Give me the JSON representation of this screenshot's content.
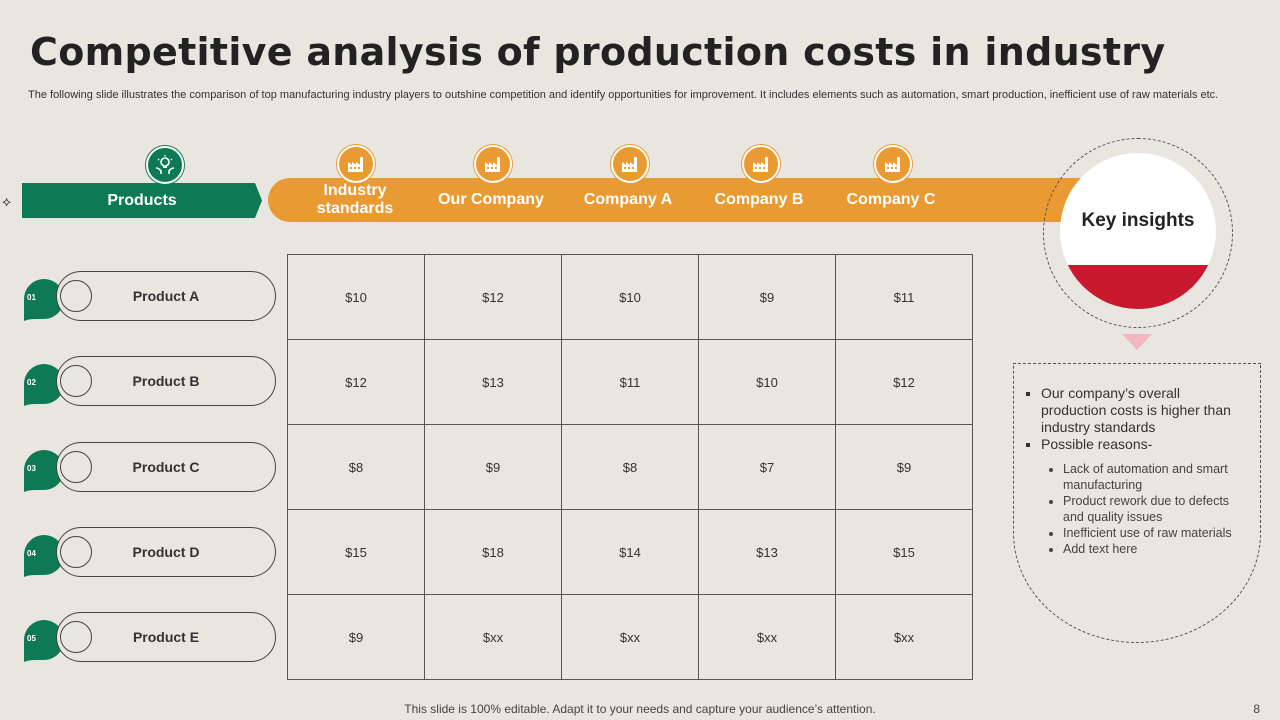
{
  "title": "Competitive analysis of production costs in industry",
  "subtitle": "The following slide illustrates the comparison of top manufacturing industry players to outshine competition and identify opportunities for improvement. It includes elements such as automation, smart production, inefficient use of raw materials etc.",
  "header": {
    "products_label": "Products",
    "columns": [
      "Industry standards",
      "Our Company",
      "Company A",
      "Company B",
      "Company C"
    ]
  },
  "rows": [
    {
      "num": "01",
      "label": "Product A",
      "values": [
        "$10",
        "$12",
        "$10",
        "$9",
        "$11"
      ]
    },
    {
      "num": "02",
      "label": "Product B",
      "values": [
        "$12",
        "$13",
        "$11",
        "$10",
        "$12"
      ]
    },
    {
      "num": "03",
      "label": "Product C",
      "values": [
        "$8",
        "$9",
        "$8",
        "$7",
        "$9"
      ]
    },
    {
      "num": "04",
      "label": "Product D",
      "values": [
        "$15",
        "$18",
        "$14",
        "$13",
        "$15"
      ]
    },
    {
      "num": "05",
      "label": "Product E",
      "values": [
        "$9",
        "$xx",
        "$xx",
        "$xx",
        "$xx"
      ]
    }
  ],
  "insights": {
    "title": "Key insights",
    "points": [
      "Our company’s overall production costs is higher than industry standards",
      "Possible reasons-"
    ],
    "reasons": [
      "Lack of automation and smart manufacturing",
      "Product rework due to defects and quality issues",
      "Inefficient use of raw materials",
      "Add text here"
    ]
  },
  "colors": {
    "green": "#0e7a55",
    "orange": "#ea9a32",
    "red": "#c8192e",
    "background": "#e9e5df"
  },
  "icons": {
    "products": "lightbulb-hands-icon",
    "columns": "factory-icon"
  },
  "footer": "This slide is 100% editable. Adapt it to your needs and capture your audience’s attention.",
  "page_number": "8"
}
